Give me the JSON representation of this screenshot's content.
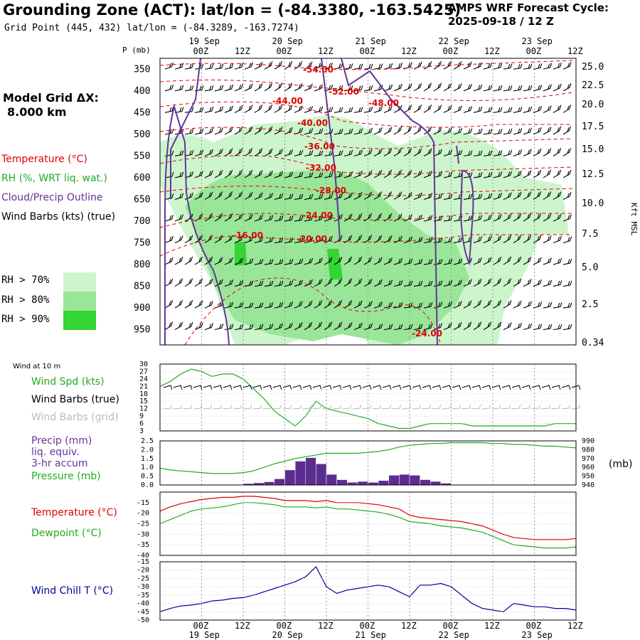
{
  "header": {
    "title": "Grounding Zone (ACT):  lat/lon = (-84.3380, -163.5425)",
    "subtitle": "Grid Point (445, 432) lat/lon = (-84.3289, -163.7274)",
    "cycle_label": "AMPS WRF Forecast Cycle:",
    "cycle_value": "2025-09-18 / 12  Z"
  },
  "model_grid": {
    "label": "Model Grid ΔX:",
    "value": "8.000 km"
  },
  "upper_legend": {
    "temperature": "Temperature (°C)",
    "rh": "RH (%, WRT liq. wat.)",
    "cloud": "Cloud/Precip Outline",
    "wind": "Wind Barbs (kts) (true)",
    "rh_levels": [
      {
        "label": "RH > 70%",
        "color": "#ccf5cc"
      },
      {
        "label": "RH > 80%",
        "color": "#99e699"
      },
      {
        "label": "RH > 90%",
        "color": "#33d633"
      }
    ]
  },
  "colors": {
    "temperature": "#e00000",
    "rh": "#22aa22",
    "cloud": "#663399",
    "precip": "#5c2d91",
    "windchill": "#000099",
    "grid": "#999999"
  },
  "time_axis": {
    "labels": [
      "00Z",
      "12Z",
      "00Z",
      "12Z",
      "00Z",
      "12Z",
      "00Z",
      "12Z",
      "00Z",
      "12Z"
    ],
    "dates": [
      "19 Sep",
      "20 Sep",
      "21 Sep",
      "22 Sep",
      "23 Sep"
    ]
  },
  "chart_data": [
    {
      "type": "contour-time-height",
      "id": "cross_section",
      "ylabel_left": "P (mb)",
      "ylabel_right": "Kft MSL",
      "pressure_levels": [
        350,
        400,
        450,
        500,
        550,
        600,
        650,
        700,
        750,
        800,
        850,
        900,
        950
      ],
      "height_kft": [
        "25.0",
        "22.5",
        "20.0",
        "17.5",
        "15.0",
        "12.5",
        "10.0",
        "7.5",
        "5.0",
        "2.5",
        "0.34"
      ],
      "temperature_contour_labels": [
        "-54.00",
        "-52.00",
        "-48.00",
        "-44.00",
        "-40.00",
        "-36.00",
        "-32.00",
        "-28.00",
        "-24.00",
        "-20.00",
        "-16.00",
        "-24.00"
      ]
    },
    {
      "type": "line",
      "id": "wind10m",
      "panel_title": "Wind at 10 m",
      "series_label": "Wind Spd (kts)",
      "barbs_true_label": "Wind Barbs (true)",
      "barbs_grid_label": "Wind Barbs (grid)",
      "ylim": [
        3,
        30
      ],
      "yticks": [
        3,
        6,
        9,
        12,
        15,
        18,
        21,
        24,
        27,
        30
      ],
      "x_hours": [
        0,
        3,
        6,
        9,
        12,
        15,
        18,
        21,
        24,
        27,
        30,
        33,
        36,
        39,
        42,
        45,
        48,
        51,
        54,
        57,
        60,
        63,
        66,
        69,
        72,
        75,
        78,
        81,
        84,
        87,
        90,
        93,
        96,
        99,
        102,
        105,
        108,
        111,
        114,
        117,
        120
      ],
      "values": [
        21,
        23,
        26,
        28,
        27,
        25,
        26,
        26,
        24,
        20,
        16,
        11,
        8,
        5,
        9,
        15,
        12,
        11,
        10,
        9,
        8,
        6,
        5,
        4,
        4,
        5,
        6,
        6,
        6,
        6,
        5,
        5,
        5,
        5,
        5,
        5,
        5,
        5,
        6,
        6,
        6
      ]
    },
    {
      "type": "bar+line",
      "id": "precip_pressure",
      "precip_label": "Precip (mm)",
      "precip_label2": "liq. equiv.",
      "precip_label3": "3-hr accum",
      "pressure_label": "Pressure (mb)",
      "right_unit": "(mb)",
      "precip_ylim": [
        0,
        2.5
      ],
      "precip_yticks": [
        "0.0",
        "0.5",
        "1.0",
        "1.5",
        "2.0",
        "2.5"
      ],
      "pressure_ylim": [
        940,
        990
      ],
      "pressure_yticks": [
        "940",
        "950",
        "960",
        "970",
        "980",
        "990"
      ],
      "precip_bars": [
        0,
        0,
        0,
        0,
        0,
        0,
        0,
        0,
        0.08,
        0.12,
        0.18,
        0.35,
        0.85,
        1.35,
        1.55,
        1.2,
        0.6,
        0.3,
        0.15,
        0.2,
        0.15,
        0.25,
        0.55,
        0.6,
        0.55,
        0.3,
        0.2,
        0.1,
        0,
        0,
        0,
        0,
        0,
        0,
        0,
        0,
        0,
        0,
        0,
        0
      ],
      "pressure": [
        959,
        957,
        956,
        955,
        954,
        953,
        953,
        953,
        954,
        956,
        960,
        964,
        967,
        970,
        972,
        974,
        976,
        976,
        976,
        976,
        977,
        978,
        980,
        983,
        985,
        986,
        987,
        987,
        988,
        988,
        988,
        988,
        987,
        987,
        986,
        986,
        985,
        984,
        984,
        983,
        982
      ]
    },
    {
      "type": "line",
      "id": "temp_dew",
      "temp_label": "Temperature (°C)",
      "dew_label": "Dewpoint (°C)",
      "ylim": [
        -40,
        -10
      ],
      "yticks": [
        -15,
        -20,
        -25,
        -30,
        -35,
        -40
      ],
      "temperature": [
        -19,
        -17,
        -15.5,
        -14.5,
        -13.5,
        -13,
        -12.5,
        -12.5,
        -12,
        -12,
        -12.5,
        -13,
        -14,
        -14,
        -14,
        -14.5,
        -14,
        -15,
        -15,
        -15,
        -15.5,
        -16,
        -17,
        -18,
        -21,
        -22,
        -22.5,
        -23,
        -23.5,
        -24,
        -25,
        -26,
        -28,
        -30,
        -31.5,
        -32,
        -32.5,
        -32.5,
        -32.5,
        -32.5,
        -32
      ],
      "dewpoint": [
        -25,
        -23,
        -21,
        -19,
        -18,
        -17.5,
        -17,
        -16,
        -15,
        -15,
        -15.5,
        -16,
        -17,
        -17,
        -17,
        -17.5,
        -17,
        -18,
        -18,
        -18.5,
        -19,
        -19.5,
        -20.5,
        -22,
        -24,
        -24.5,
        -25,
        -26,
        -26.5,
        -27,
        -28,
        -29,
        -31,
        -33,
        -35,
        -35.5,
        -36,
        -36.5,
        -36.5,
        -36.5,
        -36
      ]
    },
    {
      "type": "line",
      "id": "windchill",
      "label": "Wind Chill T (°C)",
      "ylim": [
        -50,
        -15
      ],
      "yticks": [
        -15,
        -20,
        -25,
        -30,
        -35,
        -40,
        -45,
        -50
      ],
      "values": [
        -45,
        -43,
        -41.5,
        -41,
        -40,
        -38.5,
        -38,
        -37,
        -36.5,
        -35,
        -33,
        -31,
        -29,
        -27,
        -24,
        -18,
        -30,
        -34,
        -32,
        -31,
        -30,
        -29,
        -30,
        -33,
        -36,
        -29,
        -29,
        -28,
        -30,
        -35,
        -40,
        -43,
        -44,
        -45,
        -40,
        -41,
        -42,
        -42,
        -43,
        -43,
        -44
      ]
    }
  ]
}
